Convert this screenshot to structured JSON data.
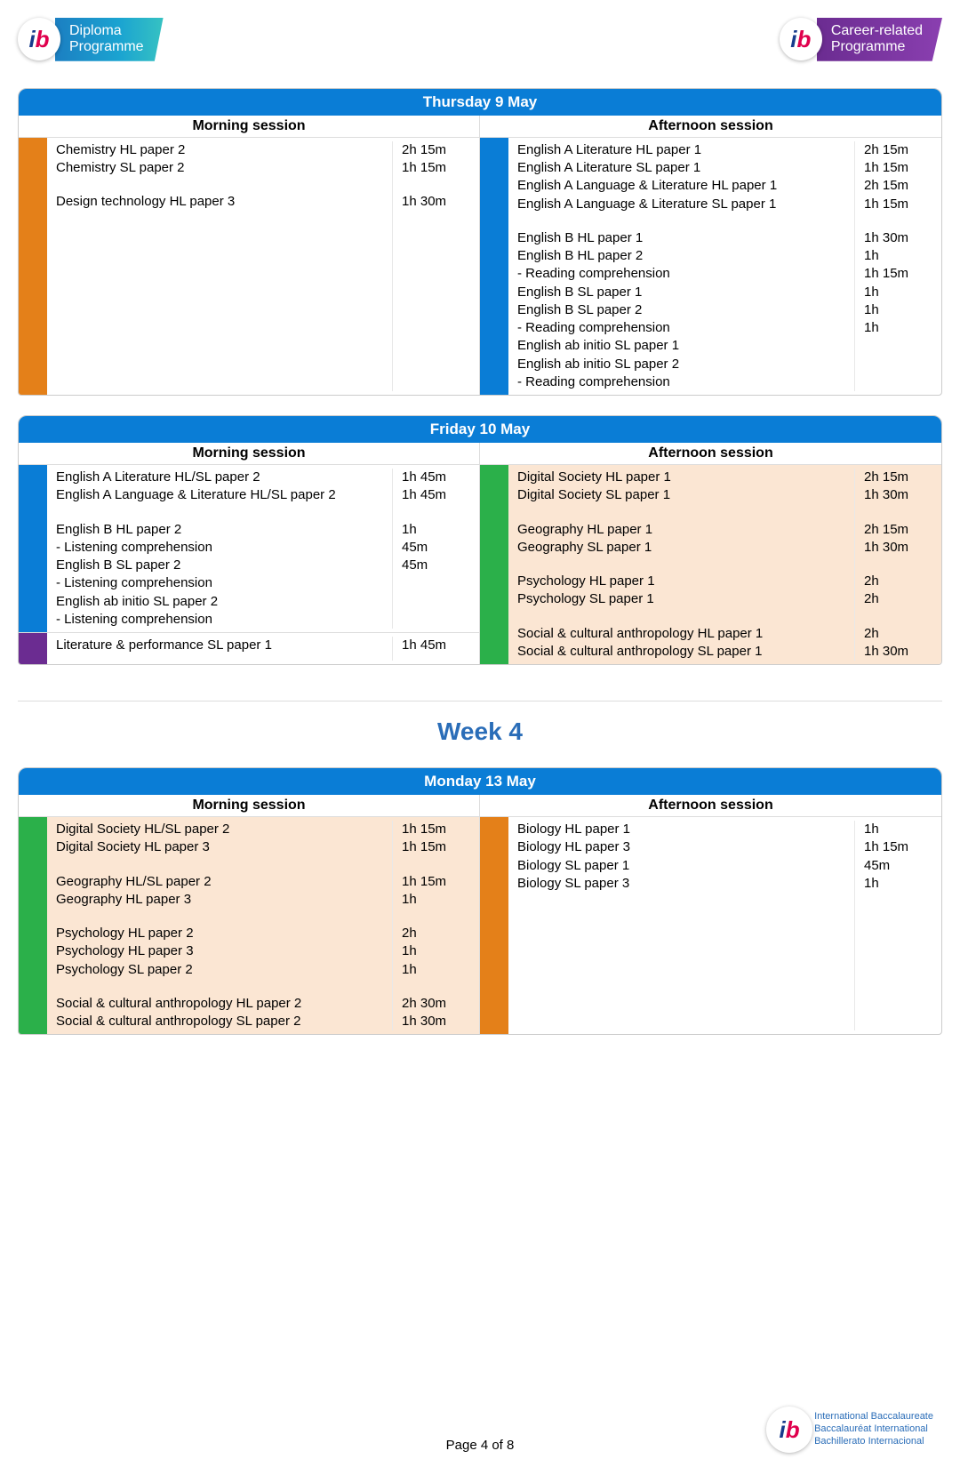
{
  "colors": {
    "header_bg": "#0a7dd6",
    "orange": "#e48019",
    "blue": "#0a7dd6",
    "green": "#2bb04a",
    "purple": "#6b2c91",
    "tint": "#fbe6d3"
  },
  "logos": {
    "dp_line1": "Diploma",
    "dp_line2": "Programme",
    "cp_line1": "Career-related",
    "cp_line2": "Programme"
  },
  "week_heading": "Week 4",
  "page_footer": "Page 4 of 8",
  "footer_org": {
    "l1": "International Baccalaureate",
    "l2": "Baccalauréat International",
    "l3": "Bachillerato Internacional"
  },
  "days": [
    {
      "title": "Thursday 9 May",
      "morning_label": "Morning session",
      "afternoon_label": "Afternoon session",
      "morning": [
        {
          "bar_color": "#e48019",
          "tinted": false,
          "rows": [
            {
              "subj": "Chemistry HL paper 2",
              "dur": "2h 15m"
            },
            {
              "subj": "Chemistry SL paper 2",
              "dur": "1h 15m"
            },
            {
              "spacer": true
            },
            {
              "subj": "Design technology HL paper 3",
              "dur": "1h 30m"
            }
          ]
        }
      ],
      "afternoon": [
        {
          "bar_color": "#0a7dd6",
          "tinted": false,
          "rows": [
            {
              "subj": "English A Literature HL paper 1",
              "dur": "2h 15m"
            },
            {
              "subj": "English A Literature SL paper 1",
              "dur": "1h 15m"
            },
            {
              "subj": "English A Language & Literature HL paper 1",
              "dur": "2h 15m"
            },
            {
              "subj": "English A Language & Literature SL paper 1",
              "dur": "1h 15m"
            },
            {
              "spacer": true
            },
            {
              "subj": "English B HL paper 1",
              "dur": "1h 30m"
            },
            {
              "subj": "English B HL paper 2",
              "dur": ""
            },
            {
              "subj": "- Reading comprehension",
              "dur": "1h"
            },
            {
              "subj": "English B SL paper 1",
              "dur": "1h 15m"
            },
            {
              "subj": "English B SL paper 2",
              "dur": ""
            },
            {
              "subj": "- Reading comprehension",
              "dur": "1h"
            },
            {
              "subj": "English ab initio SL paper 1",
              "dur": "1h"
            },
            {
              "subj": "English ab initio SL paper 2",
              "dur": ""
            },
            {
              "subj": "- Reading comprehension",
              "dur": "1h"
            }
          ]
        }
      ]
    },
    {
      "title": "Friday 10 May",
      "morning_label": "Morning session",
      "afternoon_label": "Afternoon session",
      "morning": [
        {
          "bar_color": "#0a7dd6",
          "tinted": false,
          "rows": [
            {
              "subj": "English A Literature HL/SL paper 2",
              "dur": "1h 45m"
            },
            {
              "subj": "English A Language & Literature HL/SL paper 2",
              "dur": "1h 45m"
            },
            {
              "spacer": true
            },
            {
              "subj": "English B HL paper 2",
              "dur": ""
            },
            {
              "subj": "- Listening comprehension",
              "dur": "1h"
            },
            {
              "subj": "English B SL paper 2",
              "dur": ""
            },
            {
              "subj": "- Listening comprehension",
              "dur": "45m"
            },
            {
              "subj": "English ab initio SL paper 2",
              "dur": ""
            },
            {
              "subj": "- Listening comprehension",
              "dur": "45m"
            }
          ]
        },
        {
          "bar_color": "#6b2c91",
          "tinted": false,
          "rows": [
            {
              "subj": "Literature & performance SL paper 1",
              "dur": "1h 45m"
            }
          ]
        }
      ],
      "afternoon": [
        {
          "bar_color": "#2bb04a",
          "tinted": true,
          "rows": [
            {
              "subj": "Digital Society HL paper 1",
              "dur": "2h 15m"
            },
            {
              "subj": "Digital Society SL paper 1",
              "dur": "1h 30m"
            },
            {
              "spacer": true
            },
            {
              "subj": "Geography HL paper 1",
              "dur": "2h 15m"
            },
            {
              "subj": "Geography SL paper 1",
              "dur": "1h 30m"
            },
            {
              "spacer": true
            },
            {
              "subj": "Psychology HL paper 1",
              "dur": "2h"
            },
            {
              "subj": "Psychology SL paper 1",
              "dur": "2h"
            },
            {
              "spacer": true
            },
            {
              "subj": "Social & cultural anthropology HL paper 1",
              "dur": "2h"
            },
            {
              "subj": "Social & cultural anthropology SL paper 1",
              "dur": "1h 30m"
            }
          ]
        }
      ]
    },
    {
      "title": "Monday 13 May",
      "morning_label": "Morning session",
      "afternoon_label": "Afternoon session",
      "morning": [
        {
          "bar_color": "#2bb04a",
          "tinted": true,
          "rows": [
            {
              "subj": "Digital Society HL/SL paper 2",
              "dur": "1h 15m"
            },
            {
              "subj": "Digital Society HL paper 3",
              "dur": "1h 15m"
            },
            {
              "spacer": true
            },
            {
              "subj": "Geography HL/SL paper 2",
              "dur": "1h 15m"
            },
            {
              "subj": "Geography HL paper 3",
              "dur": "1h"
            },
            {
              "spacer": true
            },
            {
              "subj": "Psychology HL paper 2",
              "dur": "2h"
            },
            {
              "subj": "Psychology HL paper 3",
              "dur": "1h"
            },
            {
              "subj": "Psychology SL paper 2",
              "dur": "1h"
            },
            {
              "spacer": true
            },
            {
              "subj": "Social & cultural anthropology HL paper 2",
              "dur": "2h 30m"
            },
            {
              "subj": "Social & cultural anthropology SL paper 2",
              "dur": "1h 30m"
            }
          ]
        }
      ],
      "afternoon": [
        {
          "bar_color": "#e48019",
          "tinted": false,
          "rows": [
            {
              "subj": "Biology HL paper 1",
              "dur": "1h"
            },
            {
              "subj": "Biology HL paper 3",
              "dur": "1h 15m"
            },
            {
              "subj": "Biology SL paper 1",
              "dur": "45m"
            },
            {
              "subj": "Biology SL paper 3",
              "dur": "1h"
            }
          ]
        }
      ]
    }
  ]
}
